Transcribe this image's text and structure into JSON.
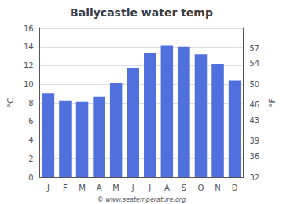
{
  "chart_data": {
    "type": "bar",
    "title": "Ballycastle water temp",
    "categories": [
      "J",
      "F",
      "M",
      "A",
      "M",
      "J",
      "J",
      "A",
      "S",
      "O",
      "N",
      "D"
    ],
    "values": [
      9.0,
      8.2,
      8.1,
      8.7,
      10.1,
      11.7,
      13.3,
      14.2,
      14.0,
      13.2,
      12.2,
      10.4
    ],
    "ylabel": "°C",
    "ylim": [
      0,
      16
    ],
    "yticks": [
      0,
      2,
      4,
      6,
      8,
      10,
      12,
      14,
      16
    ],
    "y2label": "°F",
    "y2lim": [
      32,
      60.8
    ],
    "y2ticks": [
      32,
      36,
      39,
      43,
      46,
      50,
      54,
      57
    ],
    "grid": true,
    "annotations": [
      "© www.seatemperature.org"
    ]
  }
}
